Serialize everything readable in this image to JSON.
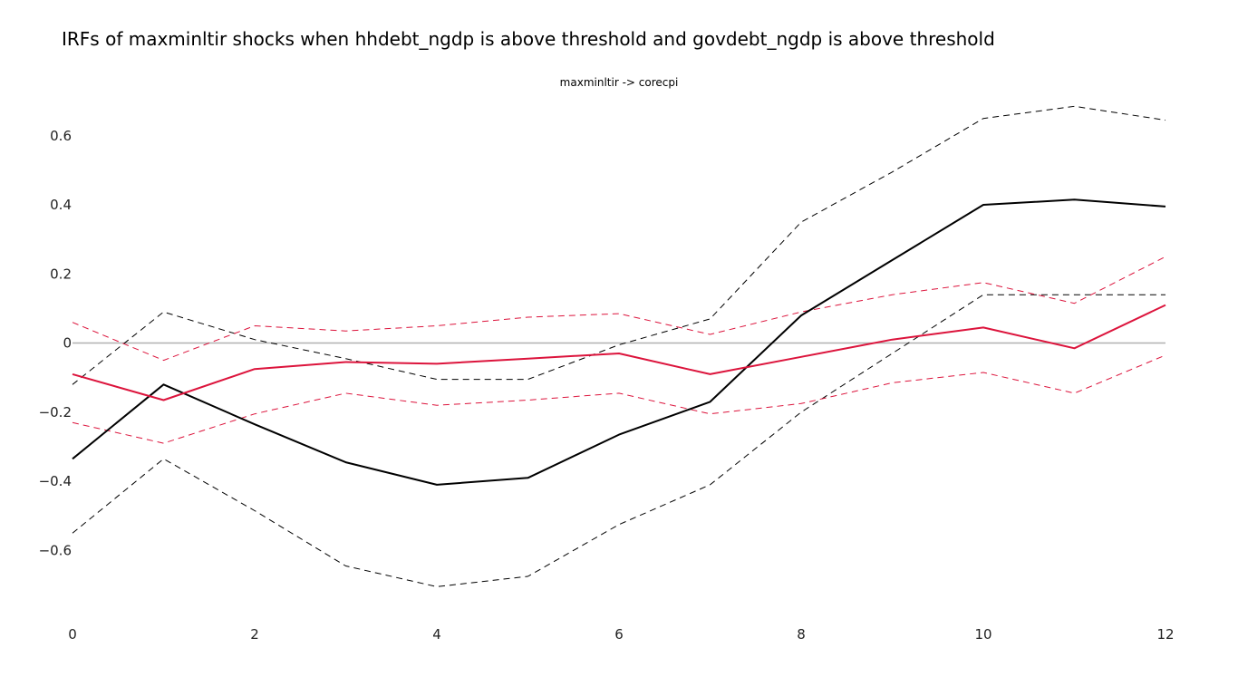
{
  "chart_data": {
    "type": "line",
    "title": "IRFs of maxminltir shocks when hhdebt_ngdp is above threshold and govdebt_ngdp is above threshold",
    "subtitle": "maxminltir -> corecpi",
    "x": [
      0,
      1,
      2,
      3,
      4,
      5,
      6,
      7,
      8,
      9,
      10,
      11,
      12
    ],
    "x_ticks": [
      0,
      2,
      4,
      6,
      8,
      10,
      12
    ],
    "x_tick_labels": [
      "0",
      "2",
      "4",
      "6",
      "8",
      "10",
      "12"
    ],
    "y_ticks": [
      -0.6,
      -0.4,
      -0.2,
      0,
      0.2,
      0.4,
      0.6
    ],
    "y_tick_labels": [
      "−0.6",
      "−0.4",
      "−0.2",
      "0",
      "0.2",
      "0.4",
      "0.6"
    ],
    "xlim": [
      0,
      12
    ],
    "ylim": [
      -0.78,
      0.72
    ],
    "grid": false,
    "zero_line": true,
    "series": [
      {
        "style": "dashed",
        "color": "#000000",
        "values": [
          -0.12,
          0.09,
          0.01,
          -0.045,
          -0.105,
          -0.105,
          -0.005,
          0.07,
          0.35,
          0.495,
          0.65,
          0.685,
          0.645
        ]
      },
      {
        "style": "dashed",
        "color": "#000000",
        "values": [
          -0.55,
          -0.335,
          -0.485,
          -0.645,
          -0.705,
          -0.675,
          -0.525,
          -0.41,
          -0.2,
          -0.03,
          0.14,
          0.14,
          0.14
        ]
      },
      {
        "style": "dashed",
        "color": "#dc143c",
        "values": [
          0.06,
          -0.05,
          0.05,
          0.035,
          0.05,
          0.075,
          0.085,
          0.025,
          0.09,
          0.14,
          0.175,
          0.115,
          0.25
        ]
      },
      {
        "style": "dashed",
        "color": "#dc143c",
        "values": [
          -0.23,
          -0.29,
          -0.205,
          -0.145,
          -0.18,
          -0.165,
          -0.145,
          -0.205,
          -0.175,
          -0.115,
          -0.085,
          -0.145,
          -0.035
        ]
      },
      {
        "style": "solid",
        "color": "#000000",
        "values": [
          -0.335,
          -0.12,
          -0.235,
          -0.345,
          -0.41,
          -0.39,
          -0.265,
          -0.17,
          0.08,
          0.24,
          0.4,
          0.415,
          0.395
        ]
      },
      {
        "style": "solid",
        "color": "#dc143c",
        "values": [
          -0.09,
          -0.165,
          -0.075,
          -0.055,
          -0.06,
          -0.045,
          -0.03,
          -0.09,
          -0.04,
          0.01,
          0.045,
          -0.015,
          0.11
        ]
      }
    ],
    "colors": {
      "zero_line": "#b0b0b0"
    }
  }
}
